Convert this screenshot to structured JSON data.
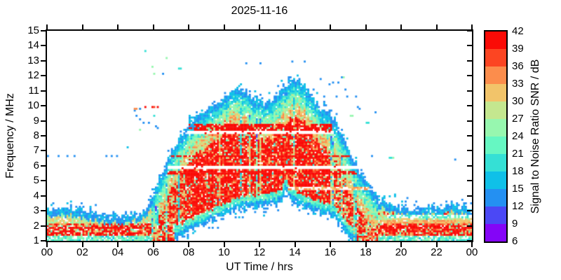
{
  "chart_data": {
    "type": "heatmap",
    "title": "2025-11-16",
    "xlabel": "UT Time / hrs",
    "ylabel": "Frequency / MHz",
    "x_range": [
      0,
      24
    ],
    "y_range": [
      1,
      15
    ],
    "x_ticks": [
      "00",
      "02",
      "04",
      "06",
      "08",
      "10",
      "12",
      "14",
      "16",
      "18",
      "20",
      "22",
      "00"
    ],
    "y_ticks": [
      "1",
      "2",
      "3",
      "4",
      "5",
      "6",
      "7",
      "8",
      "9",
      "10",
      "11",
      "12",
      "13",
      "14",
      "15"
    ],
    "grid": false,
    "colorbar": {
      "label": "Signal to Noise Ratio SNR / dB",
      "ticks": [
        "6",
        "9",
        "12",
        "15",
        "18",
        "21",
        "24",
        "27",
        "30",
        "33",
        "36",
        "39",
        "42"
      ],
      "range_db": [
        6,
        42
      ],
      "band_step_db": 3,
      "colors_low_to_high": [
        "#8405f7",
        "#4b48f5",
        "#2490f2",
        "#0fc0e8",
        "#35e0d5",
        "#66f7c2",
        "#97f7af",
        "#c4e78f",
        "#f2c46a",
        "#fc8d4c",
        "#fc4522",
        "#fa0b06"
      ]
    },
    "grid_cols": 240,
    "grid_rows": 120,
    "seed": 20251116,
    "envelope_fmax_mhz": [
      [
        0,
        3.0
      ],
      [
        0.7,
        3.05
      ],
      [
        1.2,
        3.1
      ],
      [
        1.8,
        2.95
      ],
      [
        2.5,
        2.75
      ],
      [
        3.5,
        2.6
      ],
      [
        4.5,
        2.55
      ],
      [
        5.2,
        2.7
      ],
      [
        5.7,
        3.1
      ],
      [
        6.0,
        3.9
      ],
      [
        6.3,
        4.8
      ],
      [
        6.7,
        5.9
      ],
      [
        7.0,
        6.6
      ],
      [
        7.5,
        7.7
      ],
      [
        8.0,
        8.6
      ],
      [
        8.5,
        9.2
      ],
      [
        9.0,
        9.6
      ],
      [
        9.5,
        10.1
      ],
      [
        10.0,
        10.4
      ],
      [
        10.4,
        10.8
      ],
      [
        10.8,
        11.15
      ],
      [
        11.1,
        11.1
      ],
      [
        11.5,
        10.6
      ],
      [
        12.0,
        10.25
      ],
      [
        12.4,
        10.1
      ],
      [
        12.8,
        10.4
      ],
      [
        13.2,
        10.9
      ],
      [
        13.6,
        11.3
      ],
      [
        13.9,
        11.65
      ],
      [
        14.2,
        11.6
      ],
      [
        14.6,
        11.1
      ],
      [
        15.0,
        10.3
      ],
      [
        15.4,
        9.8
      ],
      [
        15.8,
        9.4
      ],
      [
        16.1,
        9.2
      ],
      [
        16.4,
        8.6
      ],
      [
        16.7,
        7.8
      ],
      [
        17.0,
        7.1
      ],
      [
        17.3,
        6.2
      ],
      [
        17.6,
        5.5
      ],
      [
        18.0,
        4.8
      ],
      [
        18.4,
        4.1
      ],
      [
        18.8,
        3.6
      ],
      [
        19.2,
        3.4
      ],
      [
        19.6,
        3.25
      ],
      [
        20.5,
        3.05
      ],
      [
        21.5,
        3.0
      ],
      [
        22.3,
        3.1
      ],
      [
        22.9,
        3.3
      ],
      [
        23.5,
        3.15
      ],
      [
        24,
        3.1
      ]
    ],
    "cutoff_fmin_mhz": [
      [
        0,
        1.0
      ],
      [
        7.0,
        1.0
      ],
      [
        7.5,
        1.35
      ],
      [
        8.0,
        1.7
      ],
      [
        8.6,
        2.05
      ],
      [
        9.2,
        2.35
      ],
      [
        10.0,
        2.75
      ],
      [
        10.6,
        3.1
      ],
      [
        11.2,
        3.3
      ],
      [
        12.0,
        3.4
      ],
      [
        12.8,
        3.45
      ],
      [
        13.2,
        3.7
      ],
      [
        13.45,
        4.45
      ],
      [
        13.7,
        3.9
      ],
      [
        14.1,
        3.5
      ],
      [
        14.6,
        3.2
      ],
      [
        15.2,
        3.0
      ],
      [
        15.8,
        2.85
      ],
      [
        16.2,
        2.65
      ],
      [
        16.6,
        2.1
      ],
      [
        17.0,
        1.5
      ],
      [
        17.4,
        1.1
      ],
      [
        17.7,
        1.0
      ],
      [
        24,
        1.0
      ]
    ],
    "gap_lines_mhz": [
      {
        "f": 5.88,
        "half": 0.12,
        "t0": 6.8,
        "t1": 18.2,
        "keep": 0.06,
        "keep_snr": 40
      },
      {
        "f": 8.22,
        "half": 0.1,
        "t0": 7.4,
        "t1": 16.2,
        "keep": 0.09,
        "keep_snr": 40
      },
      {
        "f": 4.5,
        "half": 0.1,
        "t0": 13.6,
        "t1": 18.6,
        "keep": 0.5,
        "keep_snr": 32
      },
      {
        "f": 2.62,
        "half": 0.08,
        "t0": 19.2,
        "t1": 24.0,
        "keep": 0.45,
        "keep_snr": 20
      }
    ],
    "strong_lines_mhz": [
      {
        "f": 8.55,
        "half": 0.22,
        "t0": 7.5,
        "t1": 16.1,
        "p": 0.75
      },
      {
        "f": 6.65,
        "half": 0.09,
        "t0": 6.6,
        "t1": 18.0,
        "p": 0.8
      },
      {
        "f": 5.55,
        "half": 0.11,
        "t0": 6.8,
        "t1": 17.9,
        "p": 0.7
      },
      {
        "f": 1.9,
        "half": 0.07,
        "t0": 0.0,
        "t1": 6.2,
        "p": 0.85
      },
      {
        "f": 1.55,
        "half": 0.06,
        "t0": 0.0,
        "t1": 6.2,
        "p": 0.55
      },
      {
        "f": 1.95,
        "half": 0.08,
        "t0": 18.6,
        "t1": 24.0,
        "p": 0.5
      }
    ],
    "orange_stripe_mhz": {
      "f": 2.3,
      "half": 0.1,
      "t0": 18.3,
      "t1": 24.0,
      "snr_lo": 30,
      "snr_span": 5,
      "p": 0.9
    },
    "scatter_points_t_f_db": [
      [
        0.05,
        6.7,
        14
      ],
      [
        0.65,
        6.7,
        14
      ],
      [
        1.1,
        6.7,
        14
      ],
      [
        1.55,
        6.7,
        14
      ],
      [
        3.35,
        6.7,
        14
      ],
      [
        3.6,
        6.7,
        14
      ],
      [
        3.95,
        6.7,
        14
      ],
      [
        4.6,
        7.25,
        17
      ],
      [
        5.3,
        8.4,
        26
      ],
      [
        5.45,
        8.9,
        14
      ],
      [
        6.15,
        8.6,
        14
      ],
      [
        6.3,
        8.55,
        14
      ],
      [
        5.75,
        8.85,
        14
      ],
      [
        4.9,
        9.7,
        14
      ],
      [
        4.95,
        9.75,
        33
      ],
      [
        5.05,
        9.78,
        35
      ],
      [
        5.2,
        9.8,
        31
      ],
      [
        5.3,
        9.85,
        14
      ],
      [
        5.5,
        9.9,
        40
      ],
      [
        5.9,
        9.87,
        40
      ],
      [
        6.0,
        9.9,
        37
      ],
      [
        6.3,
        9.87,
        40
      ],
      [
        5.0,
        9.3,
        14
      ],
      [
        5.3,
        9.1,
        14
      ],
      [
        6.1,
        9.3,
        18
      ],
      [
        5.6,
        13.7,
        20
      ],
      [
        5.95,
        12.6,
        26
      ],
      [
        6.05,
        12.2,
        26
      ],
      [
        6.5,
        12.1,
        14
      ],
      [
        6.7,
        13.2,
        25
      ],
      [
        7.45,
        12.45,
        19
      ],
      [
        7.55,
        12.45,
        19
      ],
      [
        11.25,
        12.85,
        14
      ],
      [
        12.0,
        12.85,
        14
      ],
      [
        13.8,
        12.9,
        14
      ],
      [
        14.5,
        12.95,
        14
      ],
      [
        15.4,
        11.8,
        14
      ],
      [
        15.9,
        11.45,
        14
      ],
      [
        16.2,
        11.6,
        14
      ],
      [
        16.45,
        11.6,
        14
      ],
      [
        16.6,
        11.9,
        14
      ],
      [
        16.72,
        11.9,
        26
      ],
      [
        16.9,
        11.1,
        14
      ],
      [
        15.6,
        10.65,
        14
      ],
      [
        15.65,
        10.3,
        14
      ],
      [
        15.7,
        10.05,
        14
      ],
      [
        16.4,
        10.6,
        14
      ],
      [
        16.95,
        10.6,
        14
      ],
      [
        17.45,
        10.6,
        14
      ],
      [
        17.5,
        9.9,
        14
      ],
      [
        17.62,
        9.82,
        14
      ],
      [
        18.5,
        9.6,
        14
      ],
      [
        17.1,
        9.35,
        26
      ],
      [
        17.22,
        9.35,
        26
      ],
      [
        18.0,
        8.9,
        20
      ],
      [
        18.12,
        8.9,
        20
      ],
      [
        18.4,
        6.65,
        14
      ],
      [
        19.3,
        6.6,
        20
      ],
      [
        19.45,
        6.6,
        20
      ],
      [
        19.58,
        6.6,
        26
      ],
      [
        23.0,
        6.4,
        14
      ]
    ]
  }
}
